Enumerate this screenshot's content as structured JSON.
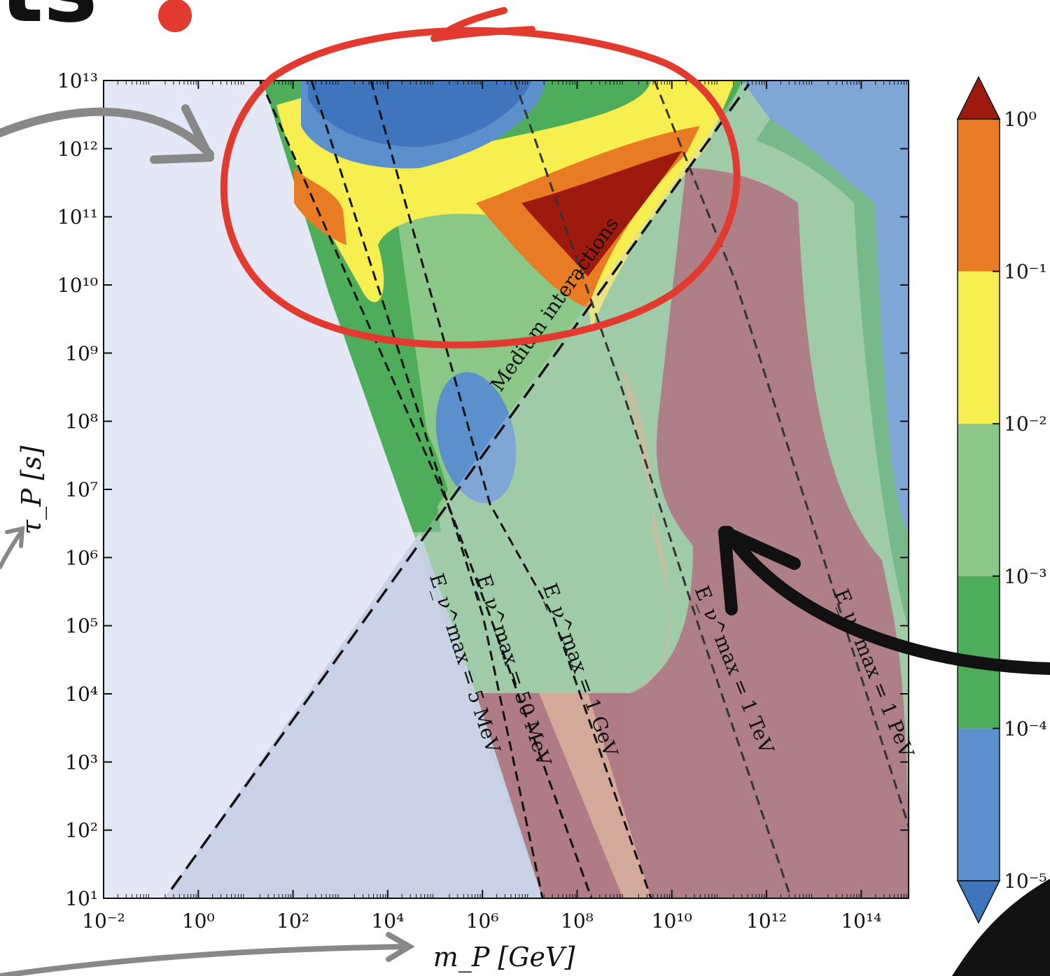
{
  "header": {
    "title_fragment": "ts"
  },
  "colors": {
    "dark_red": "#9e1a0f",
    "orange": "#e87b23",
    "yellow": "#f7ee4f",
    "light_green": "#8bc887",
    "green": "#4ead5b",
    "blue": "#5b90cc",
    "deep_blue": "#3f75bd",
    "excluded_light": "#e4e8f6",
    "excluded_triangle": "#c6d0e4",
    "excluded_high_mass": "#a34e52",
    "annotation_red": "#e33a2f",
    "arrow_gray": "#888888"
  },
  "chart_data": {
    "type": "heatmap",
    "xlabel": "m_P [GeV]",
    "ylabel": "τ_P [s]",
    "x_scale": "log",
    "y_scale": "log",
    "xlim_exp": [
      -2,
      15
    ],
    "ylim_exp": [
      1,
      13
    ],
    "x_ticks": [
      {
        "exp": -2,
        "label": "10⁻²"
      },
      {
        "exp": 0,
        "label": "10⁰"
      },
      {
        "exp": 2,
        "label": "10²"
      },
      {
        "exp": 4,
        "label": "10⁴"
      },
      {
        "exp": 6,
        "label": "10⁶"
      },
      {
        "exp": 8,
        "label": "10⁸"
      },
      {
        "exp": 10,
        "label": "10¹⁰"
      },
      {
        "exp": 12,
        "label": "10¹²"
      },
      {
        "exp": 14,
        "label": "10¹⁴"
      }
    ],
    "y_ticks": [
      {
        "exp": 1,
        "label": "10¹"
      },
      {
        "exp": 2,
        "label": "10²"
      },
      {
        "exp": 3,
        "label": "10³"
      },
      {
        "exp": 4,
        "label": "10⁴"
      },
      {
        "exp": 5,
        "label": "10⁵"
      },
      {
        "exp": 6,
        "label": "10⁶"
      },
      {
        "exp": 7,
        "label": "10⁷"
      },
      {
        "exp": 8,
        "label": "10⁸"
      },
      {
        "exp": 9,
        "label": "10⁹"
      },
      {
        "exp": 10,
        "label": "10¹⁰"
      },
      {
        "exp": 11,
        "label": "10¹¹"
      },
      {
        "exp": 12,
        "label": "10¹²"
      },
      {
        "exp": 13,
        "label": "10¹³"
      }
    ],
    "colorbar": {
      "scale": "log",
      "extend": "both",
      "levels": [
        {
          "exp": 0,
          "label": "10⁰"
        },
        {
          "exp": -1,
          "label": "10⁻¹"
        },
        {
          "exp": -2,
          "label": "10⁻²"
        },
        {
          "exp": -3,
          "label": "10⁻³"
        },
        {
          "exp": -4,
          "label": "10⁻⁴"
        },
        {
          "exp": -5,
          "label": "10⁻⁵"
        }
      ],
      "bands_top_to_bottom": [
        "#9e1a0f",
        "#e87b23",
        "#f7ee4f",
        "#8bc887",
        "#4ead5b",
        "#5b90cc",
        "#3f75bd"
      ]
    },
    "dashed_contours": [
      {
        "label": "E_ν^max = 5 MeV"
      },
      {
        "label": "E_ν^max = 50 MeV"
      },
      {
        "label": "E_ν^max = 1 GeV"
      },
      {
        "label": "E_ν^max = 1 TeV"
      },
      {
        "label": "E_ν^max = 1 PeV"
      }
    ],
    "boundary_line": {
      "label": "Medium interactions",
      "style": "dashed"
    }
  }
}
